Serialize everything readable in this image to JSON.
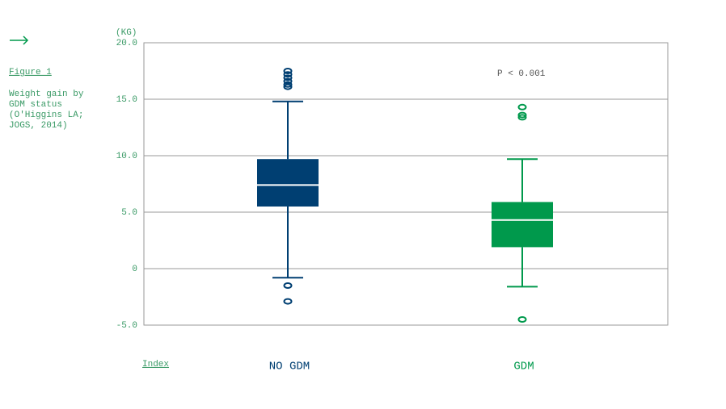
{
  "chart_data": {
    "type": "box",
    "figure_label": "Figure 1",
    "caption_lines": [
      "Weight gain by",
      "GDM status",
      "(O'Higgins LA;",
      "JOGS, 2014)"
    ],
    "y_label": "(KG)",
    "annotation": "P < 0.001",
    "footer_link": "Index",
    "ylim": [
      -5,
      20
    ],
    "yticks": [
      {
        "value": -5,
        "label": "-5.0"
      },
      0,
      {
        "value": 5,
        "label": "5.0"
      },
      {
        "value": 10,
        "label": "10.0"
      },
      {
        "value": 15,
        "label": "15.0"
      },
      {
        "value": 20,
        "label": "20.0"
      }
    ],
    "grid": true,
    "boxes": [
      {
        "name": "NO GDM",
        "color": "#003f72",
        "whisker_low": -0.8,
        "q1": 5.5,
        "median": 7.4,
        "q3": 9.7,
        "whisker_high": 14.8,
        "outliers": [
          17.5,
          17.2,
          16.9,
          16.6,
          16.3,
          16.1,
          -1.5,
          -2.9
        ]
      },
      {
        "name": "GDM",
        "color": "#00994c",
        "whisker_low": -1.6,
        "q1": 1.9,
        "median": 4.3,
        "q3": 5.9,
        "whisker_high": 9.7,
        "outliers": [
          14.3,
          13.6,
          13.4,
          -4.5
        ]
      }
    ]
  }
}
